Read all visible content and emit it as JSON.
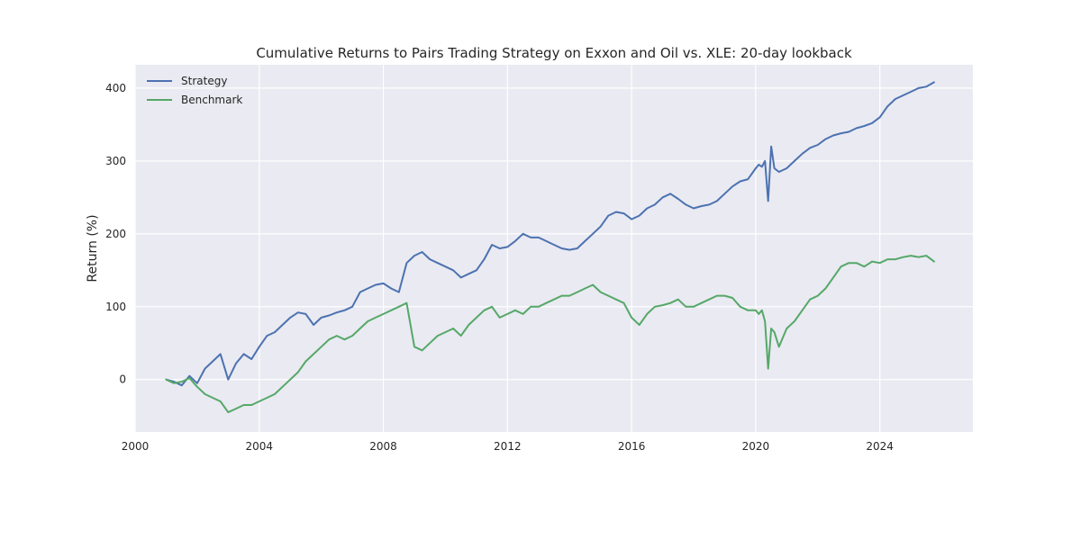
{
  "chart_data": {
    "type": "line",
    "title": "Cumulative Returns to Pairs Trading Strategy on Exxon and Oil vs. XLE: 20-day lookback",
    "xlabel": "",
    "ylabel": "Return (%)",
    "xlim": [
      2000.0,
      2027.0
    ],
    "ylim": [
      -72,
      432
    ],
    "xticks": [
      2000,
      2004,
      2008,
      2012,
      2016,
      2020,
      2024
    ],
    "yticks": [
      0,
      100,
      200,
      300,
      400
    ],
    "grid": true,
    "legend_position": "top-left",
    "background_color": "#eaeaf2",
    "series": [
      {
        "name": "Strategy",
        "color": "#4c72b0",
        "x": [
          2001.0,
          2001.25,
          2001.5,
          2001.75,
          2002.0,
          2002.25,
          2002.5,
          2002.75,
          2003.0,
          2003.25,
          2003.5,
          2003.75,
          2004.0,
          2004.25,
          2004.5,
          2004.75,
          2005.0,
          2005.25,
          2005.5,
          2005.75,
          2006.0,
          2006.25,
          2006.5,
          2006.75,
          2007.0,
          2007.25,
          2007.5,
          2007.75,
          2008.0,
          2008.25,
          2008.5,
          2008.75,
          2009.0,
          2009.25,
          2009.5,
          2009.75,
          2010.0,
          2010.25,
          2010.5,
          2010.75,
          2011.0,
          2011.25,
          2011.5,
          2011.75,
          2012.0,
          2012.25,
          2012.5,
          2012.75,
          2013.0,
          2013.25,
          2013.5,
          2013.75,
          2014.0,
          2014.25,
          2014.5,
          2014.75,
          2015.0,
          2015.25,
          2015.5,
          2015.75,
          2016.0,
          2016.25,
          2016.5,
          2016.75,
          2017.0,
          2017.25,
          2017.5,
          2017.75,
          2018.0,
          2018.25,
          2018.5,
          2018.75,
          2019.0,
          2019.25,
          2019.5,
          2019.75,
          2020.0,
          2020.1,
          2020.2,
          2020.3,
          2020.4,
          2020.5,
          2020.6,
          2020.75,
          2021.0,
          2021.25,
          2021.5,
          2021.75,
          2022.0,
          2022.25,
          2022.5,
          2022.75,
          2023.0,
          2023.25,
          2023.5,
          2023.75,
          2024.0,
          2024.25,
          2024.5,
          2024.75,
          2025.0,
          2025.25,
          2025.5,
          2025.75
        ],
        "y": [
          0,
          -3,
          -8,
          5,
          -5,
          15,
          25,
          35,
          0,
          22,
          35,
          28,
          45,
          60,
          65,
          75,
          85,
          92,
          90,
          75,
          85,
          88,
          92,
          95,
          100,
          120,
          125,
          130,
          132,
          125,
          120,
          160,
          170,
          175,
          165,
          160,
          155,
          150,
          140,
          145,
          150,
          165,
          185,
          180,
          182,
          190,
          200,
          195,
          195,
          190,
          185,
          180,
          178,
          180,
          190,
          200,
          210,
          225,
          230,
          228,
          220,
          225,
          235,
          240,
          250,
          255,
          248,
          240,
          235,
          238,
          240,
          245,
          255,
          265,
          272,
          275,
          290,
          295,
          292,
          300,
          245,
          320,
          290,
          285,
          290,
          300,
          310,
          318,
          322,
          330,
          335,
          338,
          340,
          345,
          348,
          352,
          360,
          375,
          385,
          390,
          395,
          400,
          402,
          408
        ]
      },
      {
        "name": "Benchmark",
        "color": "#55a868",
        "x": [
          2001.0,
          2001.25,
          2001.5,
          2001.75,
          2002.0,
          2002.25,
          2002.5,
          2002.75,
          2003.0,
          2003.25,
          2003.5,
          2003.75,
          2004.0,
          2004.25,
          2004.5,
          2004.75,
          2005.0,
          2005.25,
          2005.5,
          2005.75,
          2006.0,
          2006.25,
          2006.5,
          2006.75,
          2007.0,
          2007.25,
          2007.5,
          2007.75,
          2008.0,
          2008.25,
          2008.5,
          2008.75,
          2009.0,
          2009.25,
          2009.5,
          2009.75,
          2010.0,
          2010.25,
          2010.5,
          2010.75,
          2011.0,
          2011.25,
          2011.5,
          2011.75,
          2012.0,
          2012.25,
          2012.5,
          2012.75,
          2013.0,
          2013.25,
          2013.5,
          2013.75,
          2014.0,
          2014.25,
          2014.5,
          2014.75,
          2015.0,
          2015.25,
          2015.5,
          2015.75,
          2016.0,
          2016.25,
          2016.5,
          2016.75,
          2017.0,
          2017.25,
          2017.5,
          2017.75,
          2018.0,
          2018.25,
          2018.5,
          2018.75,
          2019.0,
          2019.25,
          2019.5,
          2019.75,
          2020.0,
          2020.1,
          2020.2,
          2020.3,
          2020.4,
          2020.5,
          2020.6,
          2020.75,
          2021.0,
          2021.25,
          2021.5,
          2021.75,
          2022.0,
          2022.25,
          2022.5,
          2022.75,
          2023.0,
          2023.25,
          2023.5,
          2023.75,
          2024.0,
          2024.25,
          2024.5,
          2024.75,
          2025.0,
          2025.25,
          2025.5,
          2025.75
        ],
        "y": [
          0,
          -5,
          -3,
          2,
          -10,
          -20,
          -25,
          -30,
          -45,
          -40,
          -35,
          -35,
          -30,
          -25,
          -20,
          -10,
          0,
          10,
          25,
          35,
          45,
          55,
          60,
          55,
          60,
          70,
          80,
          85,
          90,
          95,
          100,
          105,
          45,
          40,
          50,
          60,
          65,
          70,
          60,
          75,
          85,
          95,
          100,
          85,
          90,
          95,
          90,
          100,
          100,
          105,
          110,
          115,
          115,
          120,
          125,
          130,
          120,
          115,
          110,
          105,
          85,
          75,
          90,
          100,
          102,
          105,
          110,
          100,
          100,
          105,
          110,
          115,
          115,
          112,
          100,
          95,
          95,
          90,
          95,
          80,
          15,
          70,
          65,
          45,
          70,
          80,
          95,
          110,
          115,
          125,
          140,
          155,
          160,
          160,
          155,
          162,
          160,
          165,
          165,
          168,
          170,
          168,
          170,
          162
        ]
      }
    ]
  }
}
